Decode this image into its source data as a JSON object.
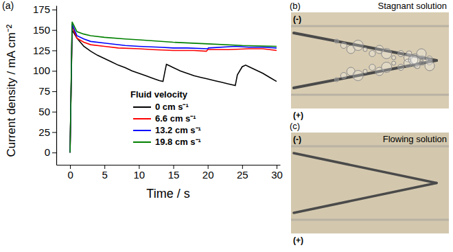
{
  "chart_data": {
    "type": "line",
    "panel_label": "(a)",
    "x_label": "Time / s",
    "y_label": "Current density / mA cm⁻²",
    "legend_title": "Fluid velocity",
    "legend": "lower center",
    "xlim": [
      -2,
      30.5
    ],
    "ylim": [
      -15,
      180
    ],
    "xticks": [
      0,
      5,
      10,
      15,
      20,
      25,
      30
    ],
    "yticks": [
      0,
      25,
      50,
      75,
      100,
      125,
      150,
      175
    ],
    "series": [
      {
        "name": "0 cm s⁻¹",
        "color": "#000000",
        "x": [
          0,
          0.3,
          1,
          2,
          3,
          4,
          5,
          6,
          7,
          8,
          9,
          10,
          11,
          12,
          13,
          13.5,
          13.8,
          14,
          14.5,
          15,
          16,
          17,
          18,
          19,
          20,
          21,
          22,
          23,
          24,
          24.3,
          25,
          25.5,
          26,
          27,
          28,
          29,
          30
        ],
        "values": [
          0,
          150,
          140,
          130,
          124,
          119,
          115,
          111,
          107,
          104,
          100,
          97,
          94,
          91,
          88,
          87,
          100,
          108,
          106,
          104,
          100,
          97,
          94,
          92,
          90,
          88,
          86,
          84,
          82,
          95,
          105,
          107,
          105,
          101,
          97,
          92,
          87
        ]
      },
      {
        "name": "6.6 cm s⁻¹",
        "color": "#ff0000",
        "x": [
          0,
          0.3,
          1,
          2,
          3,
          5,
          7,
          10,
          12,
          15,
          18,
          19.8,
          20,
          23,
          26,
          28,
          30
        ],
        "values": [
          0,
          155,
          140,
          135,
          132,
          130,
          128,
          127,
          126,
          125,
          125,
          124,
          126,
          126,
          127,
          127,
          125
        ]
      },
      {
        "name": "13.2 cm s⁻¹",
        "color": "#0000ff",
        "x": [
          0,
          0.3,
          1,
          2,
          3,
          5,
          8,
          10,
          13,
          15,
          17,
          20,
          20.1,
          24,
          26,
          28,
          30
        ],
        "values": [
          0,
          157,
          143,
          139,
          136,
          134,
          131,
          130,
          129,
          128,
          128,
          127,
          128,
          130,
          129,
          129,
          128
        ]
      },
      {
        "name": "19.8 cm s⁻¹",
        "color": "#008000",
        "x": [
          0,
          0.3,
          1,
          2,
          3,
          5,
          8,
          10,
          15,
          20,
          25,
          30
        ],
        "values": [
          0,
          160,
          148,
          145,
          143,
          141,
          139,
          138,
          135,
          133,
          131,
          130
        ]
      }
    ]
  },
  "photos": [
    {
      "letter": "(b)",
      "caption": "Stagnant solution",
      "top_label": "(-)",
      "bottom_label": "(+)"
    },
    {
      "letter": "(c)",
      "caption": "Flowing solution",
      "top_label": "(-)",
      "bottom_label": "(+)"
    }
  ]
}
